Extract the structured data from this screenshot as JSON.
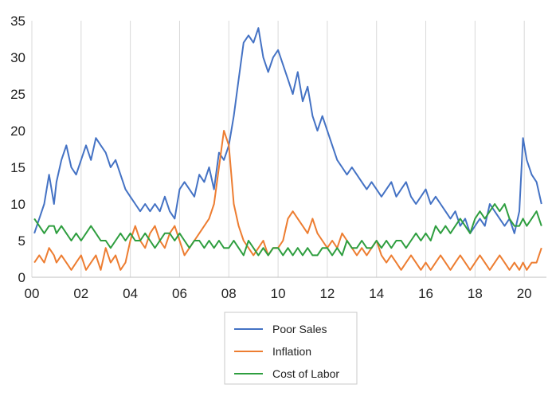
{
  "chart_data": {
    "type": "line",
    "title": "",
    "xlabel": "",
    "ylabel": "",
    "xlim": [
      0,
      20.9
    ],
    "ylim": [
      0,
      35
    ],
    "grid": "vertical",
    "legend_position": "bottom",
    "x_ticks": [
      {
        "value": 0,
        "label": "00"
      },
      {
        "value": 2,
        "label": "02"
      },
      {
        "value": 4,
        "label": "04"
      },
      {
        "value": 6,
        "label": "06"
      },
      {
        "value": 8,
        "label": "08"
      },
      {
        "value": 10,
        "label": "10"
      },
      {
        "value": 12,
        "label": "12"
      },
      {
        "value": 14,
        "label": "14"
      },
      {
        "value": 16,
        "label": "16"
      },
      {
        "value": 18,
        "label": "18"
      },
      {
        "value": 20,
        "label": "20"
      }
    ],
    "y_ticks": [
      {
        "value": 0,
        "label": "0"
      },
      {
        "value": 5,
        "label": "5"
      },
      {
        "value": 10,
        "label": "10"
      },
      {
        "value": 15,
        "label": "15"
      },
      {
        "value": 20,
        "label": "20"
      },
      {
        "value": 25,
        "label": "25"
      },
      {
        "value": 30,
        "label": "30"
      },
      {
        "value": 35,
        "label": "35"
      }
    ],
    "series": [
      {
        "name": "Poor Sales",
        "color": "#4472C4",
        "x": [
          0.1,
          0.3,
          0.5,
          0.7,
          0.9,
          1.0,
          1.2,
          1.4,
          1.6,
          1.8,
          2.0,
          2.2,
          2.4,
          2.6,
          2.8,
          3.0,
          3.2,
          3.4,
          3.6,
          3.8,
          4.0,
          4.2,
          4.4,
          4.6,
          4.8,
          5.0,
          5.2,
          5.4,
          5.6,
          5.8,
          6.0,
          6.2,
          6.4,
          6.6,
          6.8,
          7.0,
          7.2,
          7.4,
          7.6,
          7.8,
          8.0,
          8.2,
          8.4,
          8.6,
          8.8,
          9.0,
          9.2,
          9.4,
          9.6,
          9.8,
          10.0,
          10.2,
          10.4,
          10.6,
          10.8,
          11.0,
          11.2,
          11.4,
          11.6,
          11.8,
          12.0,
          12.2,
          12.4,
          12.6,
          12.8,
          13.0,
          13.2,
          13.4,
          13.6,
          13.8,
          14.0,
          14.2,
          14.4,
          14.6,
          14.8,
          15.0,
          15.2,
          15.4,
          15.6,
          15.8,
          16.0,
          16.2,
          16.4,
          16.6,
          16.8,
          17.0,
          17.2,
          17.4,
          17.6,
          17.8,
          18.0,
          18.2,
          18.4,
          18.6,
          18.8,
          19.0,
          19.2,
          19.4,
          19.6,
          19.8,
          19.95,
          20.1,
          20.3,
          20.5,
          20.7
        ],
        "y": [
          6,
          8,
          10,
          14,
          10,
          13,
          16,
          18,
          15,
          14,
          16,
          18,
          16,
          19,
          18,
          17,
          15,
          16,
          14,
          12,
          11,
          10,
          9,
          10,
          9,
          10,
          9,
          11,
          9,
          8,
          12,
          13,
          12,
          11,
          14,
          13,
          15,
          12,
          17,
          16,
          18,
          22,
          27,
          32,
          33,
          32,
          34,
          30,
          28,
          30,
          31,
          29,
          27,
          25,
          28,
          24,
          26,
          22,
          20,
          22,
          20,
          18,
          16,
          15,
          14,
          15,
          14,
          13,
          12,
          13,
          12,
          11,
          12,
          13,
          11,
          12,
          13,
          11,
          10,
          11,
          12,
          10,
          11,
          10,
          9,
          8,
          9,
          7,
          8,
          6,
          7,
          8,
          7,
          10,
          9,
          8,
          7,
          8,
          6,
          9,
          19,
          16,
          14,
          13,
          10
        ]
      },
      {
        "name": "Inflation",
        "color": "#ED7D31",
        "x": [
          0.1,
          0.3,
          0.5,
          0.7,
          0.9,
          1.0,
          1.2,
          1.4,
          1.6,
          1.8,
          2.0,
          2.2,
          2.4,
          2.6,
          2.8,
          3.0,
          3.2,
          3.4,
          3.6,
          3.8,
          4.0,
          4.2,
          4.4,
          4.6,
          4.8,
          5.0,
          5.2,
          5.4,
          5.6,
          5.8,
          6.0,
          6.2,
          6.4,
          6.6,
          6.8,
          7.0,
          7.2,
          7.4,
          7.6,
          7.8,
          8.0,
          8.2,
          8.4,
          8.6,
          8.8,
          9.0,
          9.2,
          9.4,
          9.6,
          9.8,
          10.0,
          10.2,
          10.4,
          10.6,
          10.8,
          11.0,
          11.2,
          11.4,
          11.6,
          11.8,
          12.0,
          12.2,
          12.4,
          12.6,
          12.8,
          13.0,
          13.2,
          13.4,
          13.6,
          13.8,
          14.0,
          14.2,
          14.4,
          14.6,
          14.8,
          15.0,
          15.2,
          15.4,
          15.6,
          15.8,
          16.0,
          16.2,
          16.4,
          16.6,
          16.8,
          17.0,
          17.2,
          17.4,
          17.6,
          17.8,
          18.0,
          18.2,
          18.4,
          18.6,
          18.8,
          19.0,
          19.2,
          19.4,
          19.6,
          19.8,
          19.95,
          20.1,
          20.3,
          20.5,
          20.7
        ],
        "y": [
          2,
          3,
          2,
          4,
          3,
          2,
          3,
          2,
          1,
          2,
          3,
          1,
          2,
          3,
          1,
          4,
          2,
          3,
          1,
          2,
          5,
          7,
          5,
          4,
          6,
          7,
          5,
          4,
          6,
          7,
          5,
          3,
          4,
          5,
          6,
          7,
          8,
          10,
          15,
          20,
          18,
          10,
          7,
          5,
          4,
          3,
          4,
          5,
          3,
          4,
          4,
          5,
          8,
          9,
          8,
          7,
          6,
          8,
          6,
          5,
          4,
          5,
          4,
          6,
          5,
          4,
          3,
          4,
          3,
          4,
          5,
          3,
          2,
          3,
          2,
          1,
          2,
          3,
          2,
          1,
          2,
          1,
          2,
          3,
          2,
          1,
          2,
          3,
          2,
          1,
          2,
          3,
          2,
          1,
          2,
          3,
          2,
          1,
          2,
          1,
          2,
          1,
          2,
          2,
          4
        ]
      },
      {
        "name": "Cost of Labor",
        "color": "#2E9E3F",
        "x": [
          0.1,
          0.3,
          0.5,
          0.7,
          0.9,
          1.0,
          1.2,
          1.4,
          1.6,
          1.8,
          2.0,
          2.2,
          2.4,
          2.6,
          2.8,
          3.0,
          3.2,
          3.4,
          3.6,
          3.8,
          4.0,
          4.2,
          4.4,
          4.6,
          4.8,
          5.0,
          5.2,
          5.4,
          5.6,
          5.8,
          6.0,
          6.2,
          6.4,
          6.6,
          6.8,
          7.0,
          7.2,
          7.4,
          7.6,
          7.8,
          8.0,
          8.2,
          8.4,
          8.6,
          8.8,
          9.0,
          9.2,
          9.4,
          9.6,
          9.8,
          10.0,
          10.2,
          10.4,
          10.6,
          10.8,
          11.0,
          11.2,
          11.4,
          11.6,
          11.8,
          12.0,
          12.2,
          12.4,
          12.6,
          12.8,
          13.0,
          13.2,
          13.4,
          13.6,
          13.8,
          14.0,
          14.2,
          14.4,
          14.6,
          14.8,
          15.0,
          15.2,
          15.4,
          15.6,
          15.8,
          16.0,
          16.2,
          16.4,
          16.6,
          16.8,
          17.0,
          17.2,
          17.4,
          17.6,
          17.8,
          18.0,
          18.2,
          18.4,
          18.6,
          18.8,
          19.0,
          19.2,
          19.4,
          19.6,
          19.8,
          19.95,
          20.1,
          20.3,
          20.5,
          20.7
        ],
        "y": [
          8,
          7,
          6,
          7,
          7,
          6,
          7,
          6,
          5,
          6,
          5,
          6,
          7,
          6,
          5,
          5,
          4,
          5,
          6,
          5,
          6,
          5,
          5,
          6,
          5,
          4,
          5,
          6,
          6,
          5,
          6,
          5,
          4,
          5,
          5,
          4,
          5,
          4,
          5,
          4,
          4,
          5,
          4,
          3,
          5,
          4,
          3,
          4,
          3,
          4,
          4,
          3,
          4,
          3,
          4,
          3,
          4,
          3,
          3,
          4,
          4,
          3,
          4,
          3,
          5,
          4,
          4,
          5,
          4,
          4,
          5,
          4,
          5,
          4,
          5,
          5,
          4,
          5,
          6,
          5,
          6,
          5,
          7,
          6,
          7,
          6,
          7,
          8,
          7,
          6,
          8,
          9,
          8,
          9,
          10,
          9,
          10,
          8,
          7,
          7,
          8,
          7,
          8,
          9,
          7
        ]
      }
    ]
  }
}
